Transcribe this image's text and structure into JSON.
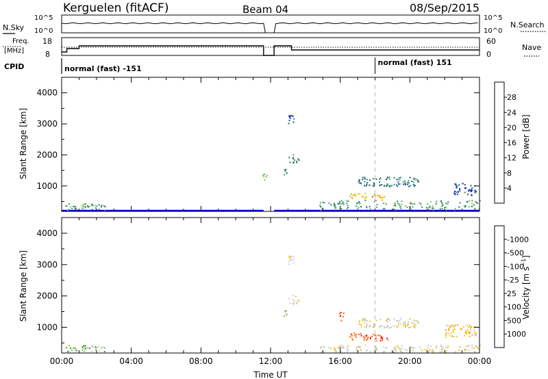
{
  "header": {
    "station": "Kerguelen (fitACF)",
    "beam": "Beam 04",
    "date": "08/Sep/2015"
  },
  "side_labels": {
    "nsky": "N.Sky",
    "nsearch": "N.Search",
    "freq_line1": "Freq.",
    "freq_line2": "[MHz]",
    "nave": "Nave",
    "cpid": "CPID"
  },
  "noise_panel": {
    "left_ticks": [
      "10^5",
      "10^0"
    ],
    "right_ticks": [
      "10^5",
      "10^0"
    ]
  },
  "freq_panel": {
    "left_ticks": [
      "18",
      "8"
    ],
    "right_ticks": [
      "60",
      "0"
    ]
  },
  "cpid_panel": {
    "segments": [
      {
        "label": "normal (fast) -151",
        "start_hour": 0
      },
      {
        "label": "normal (fast) 151",
        "start_hour": 18
      }
    ]
  },
  "colors": {
    "power_scale": [
      "#0000ff",
      "#1a4fa0",
      "#2c7a5e",
      "#3f9b74",
      "#82c341",
      "#f0c800",
      "#ff9a00",
      "#f06a00",
      "#ff0000"
    ],
    "velocity_scale": [
      "#ff0000",
      "#ff5a00",
      "#ff9a00",
      "#f0c800",
      "#c8c8c8",
      "#c8c8c8",
      "#82c341",
      "#2c8a3c",
      "#2a55b8",
      "#0000ff"
    ]
  },
  "chart_data": [
    {
      "type": "heatmap",
      "title": "",
      "xlabel": "",
      "ylabel": "Slant Range [km]",
      "colorbar_label": "Power [dB]",
      "colorbar_ticks": [
        "4",
        "8",
        "12",
        "16",
        "20",
        "24",
        "28"
      ],
      "xlim_hours": [
        0,
        24
      ],
      "ylim_km": [
        180,
        4500
      ],
      "ytick_labels": [
        "1000",
        "2000",
        "3000",
        "4000"
      ],
      "xtick_labels": [
        "00:00",
        "04:00",
        "08:00",
        "12:00",
        "16:00",
        "20:00",
        "00:00"
      ],
      "marker_hour": 18,
      "echo_regions": [
        {
          "t0": 0.0,
          "t1": 11.6,
          "r0": 180,
          "r1": 230,
          "color_index": 0
        },
        {
          "t0": 12.2,
          "t1": 24.0,
          "r0": 180,
          "r1": 230,
          "color_index": 0
        },
        {
          "t0": 0.2,
          "t1": 2.5,
          "r0": 230,
          "r1": 450,
          "color_index": 3
        },
        {
          "t0": 13.0,
          "t1": 13.4,
          "r0": 2950,
          "r1": 3300,
          "color_index": 1
        },
        {
          "t0": 13.0,
          "t1": 13.6,
          "r0": 1750,
          "r1": 2050,
          "color_index": 2
        },
        {
          "t0": 12.7,
          "t1": 12.9,
          "r0": 1300,
          "r1": 1600,
          "color_index": 3
        },
        {
          "t0": 11.5,
          "t1": 11.8,
          "r0": 1200,
          "r1": 1400,
          "color_index": 4
        },
        {
          "t0": 16.5,
          "t1": 17.5,
          "r0": 600,
          "r1": 800,
          "color_index": 5
        },
        {
          "t0": 17.7,
          "t1": 18.6,
          "r0": 550,
          "r1": 750,
          "color_index": 6
        },
        {
          "t0": 14.8,
          "t1": 24.0,
          "r0": 230,
          "r1": 550,
          "color_index": 3
        },
        {
          "t0": 17.0,
          "t1": 20.5,
          "r0": 1000,
          "r1": 1300,
          "color_index": 2
        },
        {
          "t0": 22.5,
          "t1": 23.8,
          "r0": 700,
          "r1": 1100,
          "color_index": 1
        }
      ]
    },
    {
      "type": "heatmap",
      "title": "",
      "xlabel": "Time UT",
      "ylabel": "Slant Range [km]",
      "colorbar_label": "Velocity [m s^-1]",
      "colorbar_ticks": [
        "-1000",
        "-500",
        "-100",
        "-25",
        "25",
        "100",
        "500",
        "1000"
      ],
      "xlim_hours": [
        0,
        24
      ],
      "ylim_km": [
        180,
        4500
      ],
      "ytick_labels": [
        "1000",
        "2000",
        "3000",
        "4000"
      ],
      "xtick_labels": [
        "00:00",
        "04:00",
        "08:00",
        "12:00",
        "16:00",
        "20:00",
        "00:00"
      ],
      "marker_hour": 18,
      "echo_regions": [
        {
          "t0": 0.2,
          "t1": 2.5,
          "r0": 230,
          "r1": 450,
          "color_index": 6
        },
        {
          "t0": 13.0,
          "t1": 13.4,
          "r0": 2950,
          "r1": 3300,
          "color_index": 4
        },
        {
          "t0": 13.0,
          "t1": 13.6,
          "r0": 1750,
          "r1": 2050,
          "color_index": 4
        },
        {
          "t0": 12.7,
          "t1": 12.9,
          "r0": 1300,
          "r1": 1600,
          "color_index": 6
        },
        {
          "t0": 15.9,
          "t1": 16.2,
          "r0": 1200,
          "r1": 1500,
          "color_index": 1
        },
        {
          "t0": 16.5,
          "t1": 17.6,
          "r0": 600,
          "r1": 850,
          "color_index": 1
        },
        {
          "t0": 17.7,
          "t1": 18.7,
          "r0": 580,
          "r1": 800,
          "color_index": 1
        },
        {
          "t0": 14.8,
          "t1": 24.0,
          "r0": 200,
          "r1": 450,
          "color_index": 4
        },
        {
          "t0": 17.0,
          "t1": 20.5,
          "r0": 1000,
          "r1": 1300,
          "color_index": 4
        },
        {
          "t0": 22.0,
          "t1": 23.8,
          "r0": 700,
          "r1": 1100,
          "color_index": 3
        }
      ]
    }
  ]
}
